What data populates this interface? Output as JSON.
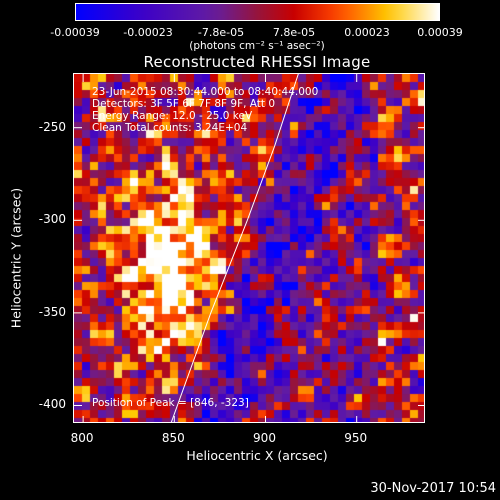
{
  "colorbar": {
    "tick_labels": [
      "-0.00039",
      "-0.00023",
      "-7.8e-05",
      "7.8e-05",
      "0.00023",
      "0.00039"
    ],
    "units": "(photons cm⁻² s⁻¹ asec⁻²)"
  },
  "chart_data": {
    "type": "heatmap",
    "title": "Reconstructed RHESSI Image",
    "xlabel": "Heliocentric X (arcsec)",
    "ylabel": "Heliocentric Y (arcsec)",
    "xlim": [
      795,
      988
    ],
    "ylim": [
      -410,
      -221
    ],
    "x_ticks": [
      "800",
      "850",
      "900",
      "950"
    ],
    "y_ticks": [
      "-250",
      "-300",
      "-350",
      "-400"
    ],
    "color_range": [
      -0.00039,
      0.00039
    ],
    "colormap": "blue-purple-red-yellow-white",
    "peak_position": [
      846,
      -323
    ],
    "limb_curve": {
      "x": [
        848,
        870,
        890,
        905,
        918
      ],
      "y": [
        -410,
        -350,
        -300,
        -260,
        -221
      ]
    },
    "annotations": {
      "time_range": "23-Jun-2015 08:30:44.000 to 08:40:44.000",
      "detectors": "Detectors: 3F 5F 6F 7F 8F 9F, Att 0",
      "energy": "Energy Range: 12.0 - 25.0 keV",
      "clean": "Clean    Total counts: 3.24E+04",
      "peak": "Position of Peak = [846, -323]"
    }
  },
  "footer": {
    "timestamp": "30-Nov-2017 10:54"
  }
}
